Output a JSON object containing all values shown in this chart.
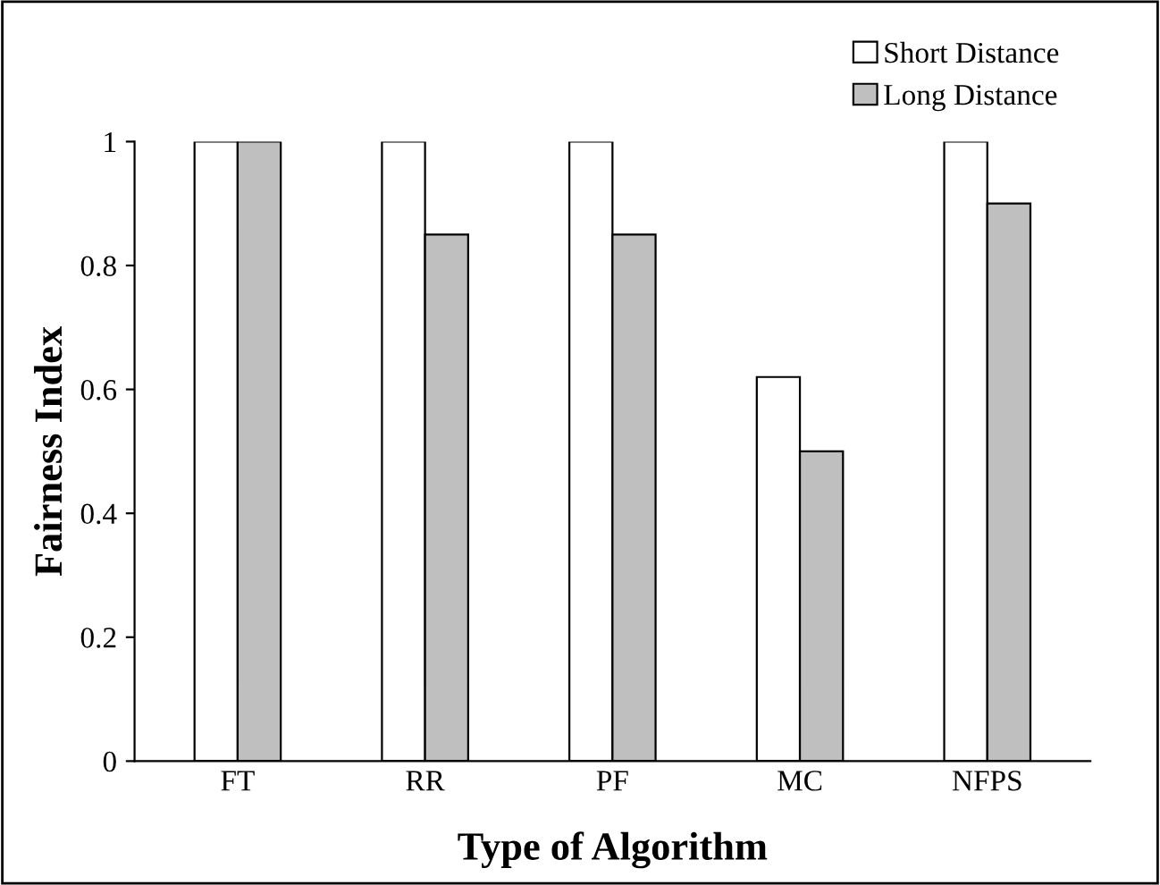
{
  "chart_data": {
    "type": "bar",
    "xlabel": "Type of Algorithm",
    "ylabel": "Fairness Index",
    "categories": [
      "FT",
      "RR",
      "PF",
      "MC",
      "NFPS"
    ],
    "series": [
      {
        "name": "Short Distance",
        "color": "#ffffff",
        "values": [
          1,
          1,
          1,
          0.62,
          1
        ]
      },
      {
        "name": "Long Distance",
        "color": "#bfbfbf",
        "values": [
          1,
          0.85,
          0.85,
          0.5,
          0.9
        ]
      }
    ],
    "ylim": [
      0,
      1
    ],
    "yticks": [
      0,
      0.2,
      0.4,
      0.6,
      0.8,
      1
    ],
    "grid": false,
    "legend": "top right"
  }
}
